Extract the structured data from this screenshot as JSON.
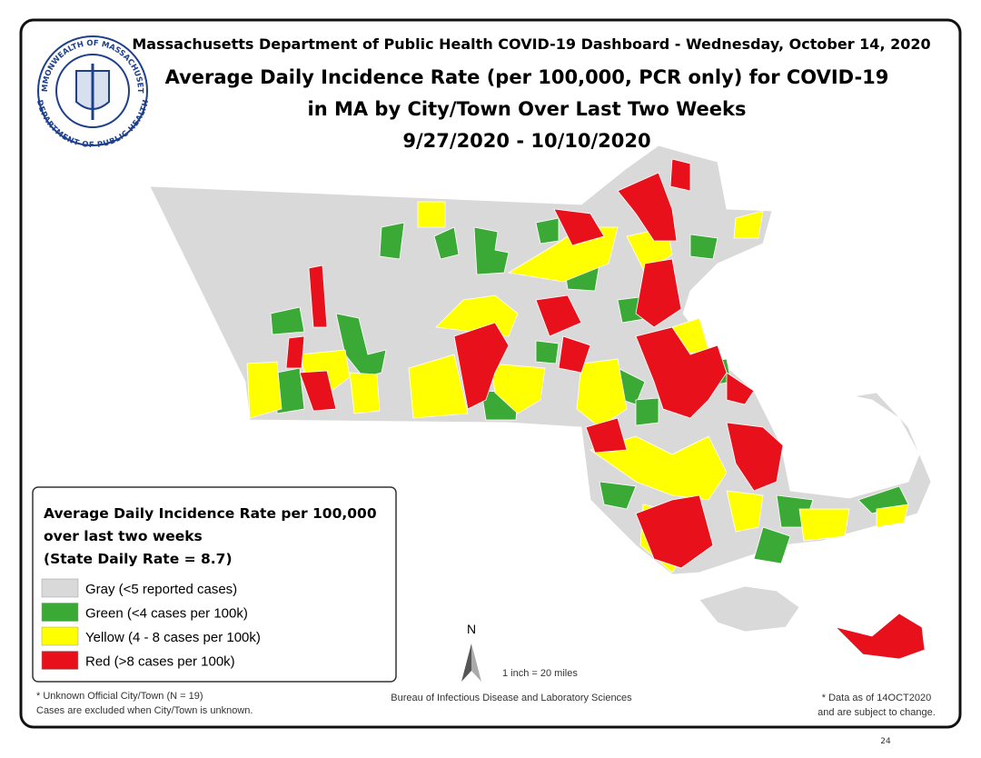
{
  "header": {
    "line1": "Massachusetts Department of Public Health COVID-19 Dashboard - Wednesday, October 14, 2020",
    "title_lines": [
      "Average Daily Incidence Rate (per 100,000, PCR only) for COVID-19",
      "in MA by City/Town Over Last Two Weeks",
      "9/27/2020 - 10/10/2020"
    ]
  },
  "seal": {
    "top": "COMMONWEALTH OF MASSACHUSETTS",
    "bottom": "DEPARTMENT OF PUBLIC HEALTH"
  },
  "legend": {
    "title_lines": [
      "Average Daily Incidence Rate per 100,000",
      "over last two weeks",
      "(State Daily Rate = 8.7)"
    ],
    "items": [
      {
        "label": "Gray (<5 reported cases)",
        "color": "#d9d9d9"
      },
      {
        "label": "Green (<4 cases per 100k)",
        "color": "#3aa935"
      },
      {
        "label": "Yellow (4 - 8 cases per 100k)",
        "color": "#ffff00"
      },
      {
        "label": "Red (>8 cases per 100k)",
        "color": "#e8101a"
      }
    ]
  },
  "north": "N",
  "scale": "1 inch = 20 miles",
  "notes": {
    "left": [
      "* Unknown Official City/Town (N = 19)",
      "Cases are excluded when City/Town is unknown."
    ],
    "center": "Bureau of Infectious Disease and Laboratory Sciences",
    "right": [
      "* Data as of 14OCT2020",
      "and are subject to change."
    ]
  },
  "page_number": "24"
}
